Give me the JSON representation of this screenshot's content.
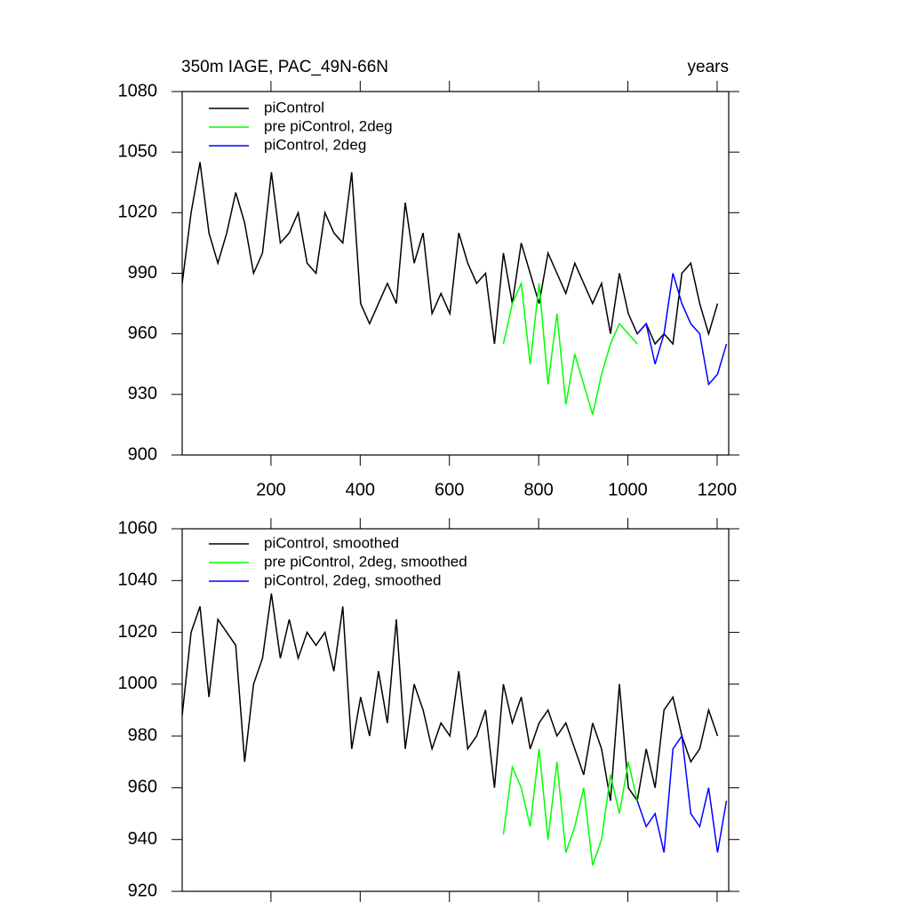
{
  "chart_data": [
    {
      "type": "line",
      "title": "350m IAGE, PAC_49N-66N",
      "x_label": "years",
      "xlim": [
        1,
        1226
      ],
      "ylim": [
        900,
        1080
      ],
      "xticks": [
        200,
        400,
        600,
        800,
        1000,
        1200
      ],
      "yticks": [
        900,
        930,
        960,
        990,
        1020,
        1050,
        1080
      ],
      "series": [
        {
          "name": "piControl",
          "color": "#000000",
          "x": [
            1,
            21,
            41,
            61,
            81,
            101,
            121,
            141,
            161,
            181,
            201,
            221,
            241,
            261,
            281,
            301,
            321,
            341,
            361,
            381,
            401,
            421,
            441,
            461,
            481,
            501,
            521,
            541,
            561,
            581,
            601,
            621,
            641,
            661,
            681,
            701,
            721,
            741,
            761,
            781,
            801,
            821,
            841,
            861,
            881,
            901,
            921,
            941,
            961,
            981,
            1001,
            1021,
            1041,
            1061,
            1081,
            1101,
            1121,
            1141,
            1161,
            1181,
            1201
          ],
          "values": [
            985,
            1020,
            1045,
            1010,
            995,
            1010,
            1030,
            1015,
            990,
            1000,
            1040,
            1005,
            1010,
            1020,
            995,
            990,
            1020,
            1010,
            1005,
            1040,
            975,
            965,
            975,
            985,
            975,
            1025,
            995,
            1010,
            970,
            980,
            970,
            1010,
            995,
            985,
            990,
            955,
            1000,
            975,
            1005,
            990,
            975,
            1000,
            990,
            980,
            995,
            985,
            975,
            985,
            960,
            990,
            970,
            960,
            965,
            955,
            960,
            955,
            990,
            995,
            975,
            960,
            975
          ]
        },
        {
          "name": "pre piControl, 2deg",
          "color": "#00ff00",
          "x": [
            721,
            741,
            761,
            781,
            801,
            821,
            841,
            861,
            881,
            901,
            921,
            941,
            961,
            981,
            1001,
            1021
          ],
          "values": [
            955,
            975,
            985,
            945,
            985,
            935,
            970,
            925,
            950,
            935,
            920,
            940,
            955,
            965,
            960,
            955
          ]
        },
        {
          "name": "piControl, 2deg",
          "color": "#0000ff",
          "x": [
            1021,
            1041,
            1061,
            1081,
            1101,
            1121,
            1141,
            1161,
            1181,
            1201,
            1221
          ],
          "values": [
            960,
            965,
            945,
            960,
            990,
            975,
            965,
            960,
            935,
            940,
            955
          ]
        }
      ]
    },
    {
      "type": "line",
      "xlim": [
        1,
        1226
      ],
      "ylim": [
        920,
        1060
      ],
      "xticks": [
        200,
        400,
        600,
        800,
        1000,
        1200
      ],
      "yticks": [
        920,
        940,
        960,
        980,
        1000,
        1020,
        1040,
        1060
      ],
      "series": [
        {
          "name": "piControl, smoothed",
          "color": "#000000",
          "x": [
            1,
            21,
            41,
            61,
            81,
            101,
            121,
            141,
            161,
            181,
            201,
            221,
            241,
            261,
            281,
            301,
            321,
            341,
            361,
            381,
            401,
            421,
            441,
            461,
            481,
            501,
            521,
            541,
            561,
            581,
            601,
            621,
            641,
            661,
            681,
            701,
            721,
            741,
            761,
            781,
            801,
            821,
            841,
            861,
            881,
            901,
            921,
            941,
            961,
            981,
            1001,
            1021,
            1041,
            1061,
            1081,
            1101,
            1121,
            1141,
            1161,
            1181,
            1201
          ],
          "values": [
            988,
            1020,
            1030,
            995,
            1025,
            1020,
            1015,
            970,
            1000,
            1010,
            1035,
            1010,
            1025,
            1010,
            1020,
            1015,
            1020,
            1005,
            1030,
            975,
            995,
            980,
            1005,
            985,
            1025,
            975,
            1000,
            990,
            975,
            985,
            980,
            1005,
            975,
            980,
            990,
            960,
            1000,
            985,
            995,
            975,
            985,
            990,
            980,
            985,
            975,
            965,
            985,
            975,
            955,
            1000,
            960,
            955,
            975,
            960,
            990,
            995,
            980,
            970,
            975,
            990,
            980
          ]
        },
        {
          "name": "pre piControl, 2deg, smoothed",
          "color": "#00ff00",
          "x": [
            721,
            741,
            761,
            781,
            801,
            821,
            841,
            861,
            881,
            901,
            921,
            941,
            961,
            981,
            1001,
            1021
          ],
          "values": [
            942,
            968,
            960,
            945,
            975,
            940,
            970,
            935,
            945,
            960,
            930,
            940,
            965,
            950,
            970,
            955
          ]
        },
        {
          "name": "piControl, 2deg, smoothed",
          "color": "#0000ff",
          "x": [
            1021,
            1041,
            1061,
            1081,
            1101,
            1121,
            1141,
            1161,
            1181,
            1201,
            1221
          ],
          "values": [
            955,
            945,
            950,
            935,
            975,
            980,
            950,
            945,
            960,
            935,
            955
          ]
        }
      ]
    }
  ]
}
